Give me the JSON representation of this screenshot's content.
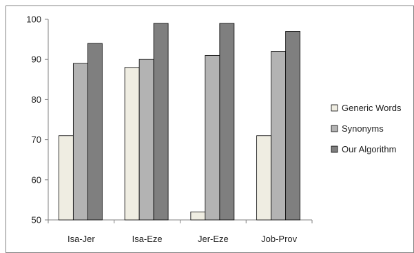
{
  "chart_data": {
    "type": "bar",
    "categories": [
      "Isa-Jer",
      "Isa-Eze",
      "Jer-Eze",
      "Job-Prov"
    ],
    "series": [
      {
        "name": "Generic Words",
        "values": [
          71,
          88,
          52,
          71
        ],
        "color": "#efede2"
      },
      {
        "name": "Synonyms",
        "values": [
          89,
          90,
          91,
          92
        ],
        "color": "#b3b3b3"
      },
      {
        "name": "Our Algorithm",
        "values": [
          94,
          99,
          99,
          97
        ],
        "color": "#7f7f7f"
      }
    ],
    "ylim": [
      50,
      100
    ],
    "yticks": [
      50,
      60,
      70,
      80,
      90,
      100
    ],
    "grid": false,
    "legend": "right"
  }
}
